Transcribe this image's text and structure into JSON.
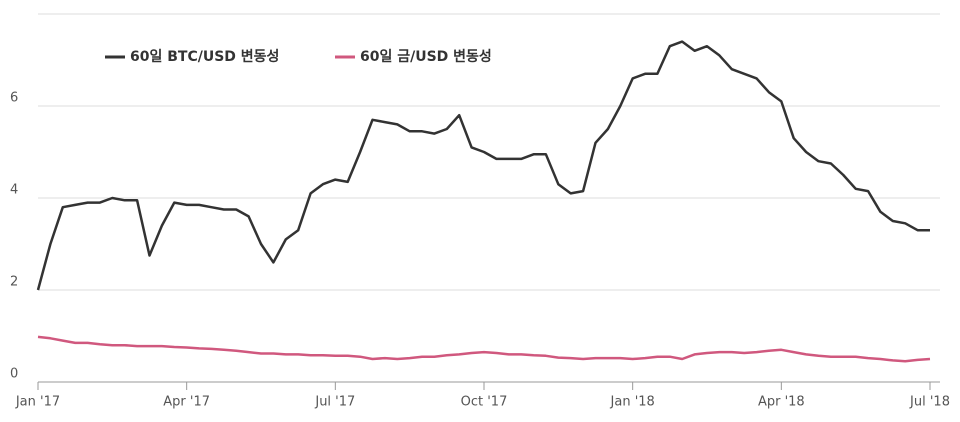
{
  "chart_data": {
    "type": "line",
    "categories": [
      "Jan '17",
      null,
      null,
      null,
      null,
      null,
      null,
      null,
      null,
      null,
      null,
      null,
      "Apr '17",
      null,
      null,
      null,
      null,
      null,
      null,
      null,
      null,
      null,
      null,
      null,
      "Jul '17",
      null,
      null,
      null,
      null,
      null,
      null,
      null,
      null,
      null,
      null,
      null,
      "Oct '17",
      null,
      null,
      null,
      null,
      null,
      null,
      null,
      null,
      null,
      null,
      null,
      "Jan '18",
      null,
      null,
      null,
      null,
      null,
      null,
      null,
      null,
      null,
      null,
      null,
      "Apr '18",
      null,
      null,
      null,
      null,
      null,
      null,
      null,
      null,
      null,
      null,
      null,
      "Jul '18"
    ],
    "series": [
      {
        "name": "60일 BTC/USD 변동성",
        "color": "#333333",
        "values": [
          2.0,
          3.0,
          3.8,
          3.85,
          3.9,
          3.9,
          4.0,
          3.95,
          3.95,
          2.75,
          3.4,
          3.9,
          3.85,
          3.85,
          3.8,
          3.75,
          3.75,
          3.6,
          3.0,
          2.6,
          3.1,
          3.3,
          4.1,
          4.3,
          4.4,
          4.35,
          5.0,
          5.7,
          5.65,
          5.6,
          5.45,
          5.45,
          5.4,
          5.5,
          5.8,
          5.1,
          5.0,
          4.85,
          4.85,
          4.85,
          4.95,
          4.95,
          4.3,
          4.1,
          4.15,
          5.2,
          5.5,
          6.0,
          6.6,
          6.7,
          6.7,
          7.3,
          7.4,
          7.2,
          7.3,
          7.1,
          6.8,
          6.7,
          6.6,
          6.3,
          6.1,
          5.3,
          5.0,
          4.8,
          4.75,
          4.5,
          4.2,
          4.15,
          3.7,
          3.5,
          3.45,
          3.3,
          3.3
        ]
      },
      {
        "name": "60일 금/USD 변동성",
        "color": "#d0587e",
        "values": [
          0.98,
          0.95,
          0.9,
          0.85,
          0.85,
          0.82,
          0.8,
          0.8,
          0.78,
          0.78,
          0.78,
          0.76,
          0.75,
          0.73,
          0.72,
          0.7,
          0.68,
          0.65,
          0.62,
          0.62,
          0.6,
          0.6,
          0.58,
          0.58,
          0.57,
          0.57,
          0.55,
          0.5,
          0.52,
          0.5,
          0.52,
          0.55,
          0.55,
          0.58,
          0.6,
          0.63,
          0.65,
          0.63,
          0.6,
          0.6,
          0.58,
          0.57,
          0.53,
          0.52,
          0.5,
          0.52,
          0.52,
          0.52,
          0.5,
          0.52,
          0.55,
          0.55,
          0.5,
          0.6,
          0.63,
          0.65,
          0.65,
          0.63,
          0.65,
          0.68,
          0.7,
          0.65,
          0.6,
          0.57,
          0.55,
          0.55,
          0.55,
          0.52,
          0.5,
          0.47,
          0.45,
          0.48,
          0.5
        ]
      }
    ],
    "ylim": [
      0,
      8
    ],
    "yticks": [
      0,
      2,
      4,
      6
    ],
    "grid": true,
    "legend": "upper left"
  }
}
